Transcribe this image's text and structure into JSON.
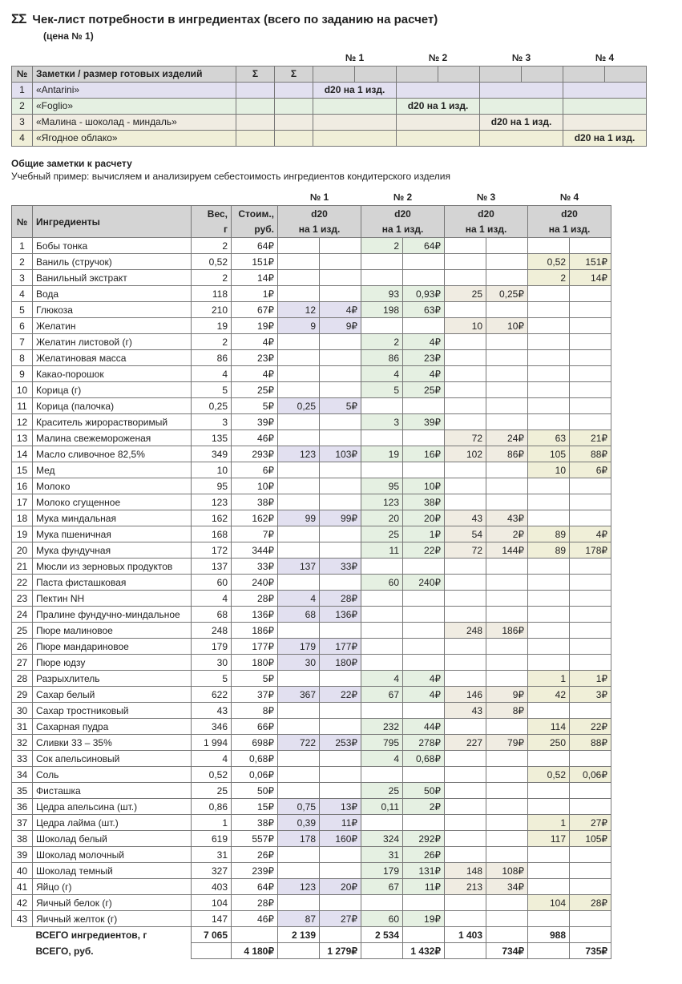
{
  "title_prefix": "ΣΣ",
  "title": "Чек-лист потребности в ингредиентах (всего по заданию на расчет)",
  "price_subtitle": "(цена № 1)",
  "recipe_header_num": "№",
  "recipe_header_name": "Заметки / размер готовых изделий",
  "recipe_header_sigma": "Σ",
  "recipe_group_labels": [
    "№ 1",
    "№ 2",
    "№ 3",
    "№ 4"
  ],
  "recipes": [
    {
      "n": "1",
      "name": "«Antarini»",
      "note": "d20 на 1 изд.",
      "row_cls": "row-purple"
    },
    {
      "n": "2",
      "name": "«Foglio»",
      "note": "d20 на 1 изд.",
      "row_cls": "row-green"
    },
    {
      "n": "3",
      "name": "«Малина - шоколад - миндаль»",
      "note": "d20 на 1 изд.",
      "row_cls": "row-tan"
    },
    {
      "n": "4",
      "name": "«Ягодное облако»",
      "note": "d20 на 1 изд.",
      "row_cls": "row-yellow"
    }
  ],
  "notes_heading": "Общие заметки к расчету",
  "notes_text": "Учебный пример: вычисляем и анализируем себестоимость ингредиентов кондитерского изделия",
  "ing_header_num": "№",
  "ing_header_name": "Ингредиенты",
  "ing_header_weight_1": "Вес,",
  "ing_header_weight_2": "г",
  "ing_header_cost_1": "Стоим.,",
  "ing_header_cost_2": "руб.",
  "ing_group_top": [
    "№ 1",
    "№ 2",
    "№ 3",
    "№ 4"
  ],
  "ing_group_mid": "d20",
  "ing_group_bot": "на 1 изд.",
  "cell_classes": [
    "cell-purple",
    "cell-green",
    "cell-tan",
    "cell-yellow"
  ],
  "ingredients": [
    {
      "n": "1",
      "name": "Бобы тонка",
      "w": "2",
      "c": "64₽",
      "g": [
        [
          "",
          ""
        ],
        [
          "2",
          "64₽"
        ],
        [
          "",
          ""
        ],
        [
          "",
          ""
        ]
      ]
    },
    {
      "n": "2",
      "name": "Ваниль (стручок)",
      "w": "0,52",
      "c": "151₽",
      "g": [
        [
          "",
          ""
        ],
        [
          "",
          ""
        ],
        [
          "",
          ""
        ],
        [
          "0,52",
          "151₽"
        ]
      ]
    },
    {
      "n": "3",
      "name": "Ванильный экстракт",
      "w": "2",
      "c": "14₽",
      "g": [
        [
          "",
          ""
        ],
        [
          "",
          ""
        ],
        [
          "",
          ""
        ],
        [
          "2",
          "14₽"
        ]
      ]
    },
    {
      "n": "4",
      "name": "Вода",
      "w": "118",
      "c": "1₽",
      "g": [
        [
          "",
          ""
        ],
        [
          "93",
          "0,93₽"
        ],
        [
          "25",
          "0,25₽"
        ],
        [
          "",
          ""
        ]
      ]
    },
    {
      "n": "5",
      "name": "Глюкоза",
      "w": "210",
      "c": "67₽",
      "g": [
        [
          "12",
          "4₽"
        ],
        [
          "198",
          "63₽"
        ],
        [
          "",
          ""
        ],
        [
          "",
          ""
        ]
      ]
    },
    {
      "n": "6",
      "name": "Желатин",
      "w": "19",
      "c": "19₽",
      "g": [
        [
          "9",
          "9₽"
        ],
        [
          "",
          ""
        ],
        [
          "10",
          "10₽"
        ],
        [
          "",
          ""
        ]
      ]
    },
    {
      "n": "7",
      "name": "Желатин листовой (г)",
      "w": "2",
      "c": "4₽",
      "g": [
        [
          "",
          ""
        ],
        [
          "2",
          "4₽"
        ],
        [
          "",
          ""
        ],
        [
          "",
          ""
        ]
      ]
    },
    {
      "n": "8",
      "name": "Желатиновая масса",
      "w": "86",
      "c": "23₽",
      "g": [
        [
          "",
          ""
        ],
        [
          "86",
          "23₽"
        ],
        [
          "",
          ""
        ],
        [
          "",
          ""
        ]
      ]
    },
    {
      "n": "9",
      "name": "Какао-порошок",
      "w": "4",
      "c": "4₽",
      "g": [
        [
          "",
          ""
        ],
        [
          "4",
          "4₽"
        ],
        [
          "",
          ""
        ],
        [
          "",
          ""
        ]
      ]
    },
    {
      "n": "10",
      "name": "Корица (г)",
      "w": "5",
      "c": "25₽",
      "g": [
        [
          "",
          ""
        ],
        [
          "5",
          "25₽"
        ],
        [
          "",
          ""
        ],
        [
          "",
          ""
        ]
      ]
    },
    {
      "n": "11",
      "name": "Корица (палочка)",
      "w": "0,25",
      "c": "5₽",
      "g": [
        [
          "0,25",
          "5₽"
        ],
        [
          "",
          ""
        ],
        [
          "",
          ""
        ],
        [
          "",
          ""
        ]
      ]
    },
    {
      "n": "12",
      "name": "Краситель жирорастворимый",
      "w": "3",
      "c": "39₽",
      "g": [
        [
          "",
          ""
        ],
        [
          "3",
          "39₽"
        ],
        [
          "",
          ""
        ],
        [
          "",
          ""
        ]
      ]
    },
    {
      "n": "13",
      "name": "Малина свежемороженая",
      "w": "135",
      "c": "46₽",
      "g": [
        [
          "",
          ""
        ],
        [
          "",
          ""
        ],
        [
          "72",
          "24₽"
        ],
        [
          "63",
          "21₽"
        ]
      ]
    },
    {
      "n": "14",
      "name": "Масло сливочное 82,5%",
      "w": "349",
      "c": "293₽",
      "g": [
        [
          "123",
          "103₽"
        ],
        [
          "19",
          "16₽"
        ],
        [
          "102",
          "86₽"
        ],
        [
          "105",
          "88₽"
        ]
      ]
    },
    {
      "n": "15",
      "name": "Мед",
      "w": "10",
      "c": "6₽",
      "g": [
        [
          "",
          ""
        ],
        [
          "",
          ""
        ],
        [
          "",
          ""
        ],
        [
          "10",
          "6₽"
        ]
      ]
    },
    {
      "n": "16",
      "name": "Молоко",
      "w": "95",
      "c": "10₽",
      "g": [
        [
          "",
          ""
        ],
        [
          "95",
          "10₽"
        ],
        [
          "",
          ""
        ],
        [
          "",
          ""
        ]
      ]
    },
    {
      "n": "17",
      "name": "Молоко сгущенное",
      "w": "123",
      "c": "38₽",
      "g": [
        [
          "",
          ""
        ],
        [
          "123",
          "38₽"
        ],
        [
          "",
          ""
        ],
        [
          "",
          ""
        ]
      ]
    },
    {
      "n": "18",
      "name": "Мука миндальная",
      "w": "162",
      "c": "162₽",
      "g": [
        [
          "99",
          "99₽"
        ],
        [
          "20",
          "20₽"
        ],
        [
          "43",
          "43₽"
        ],
        [
          "",
          ""
        ]
      ]
    },
    {
      "n": "19",
      "name": "Мука пшеничная",
      "w": "168",
      "c": "7₽",
      "g": [
        [
          "",
          ""
        ],
        [
          "25",
          "1₽"
        ],
        [
          "54",
          "2₽"
        ],
        [
          "89",
          "4₽"
        ]
      ]
    },
    {
      "n": "20",
      "name": "Мука фундучная",
      "w": "172",
      "c": "344₽",
      "g": [
        [
          "",
          ""
        ],
        [
          "11",
          "22₽"
        ],
        [
          "72",
          "144₽"
        ],
        [
          "89",
          "178₽"
        ]
      ]
    },
    {
      "n": "21",
      "name": "Мюсли из зерновых продуктов",
      "w": "137",
      "c": "33₽",
      "g": [
        [
          "137",
          "33₽"
        ],
        [
          "",
          ""
        ],
        [
          "",
          ""
        ],
        [
          "",
          ""
        ]
      ]
    },
    {
      "n": "22",
      "name": "Паста фисташковая",
      "w": "60",
      "c": "240₽",
      "g": [
        [
          "",
          ""
        ],
        [
          "60",
          "240₽"
        ],
        [
          "",
          ""
        ],
        [
          "",
          ""
        ]
      ]
    },
    {
      "n": "23",
      "name": "Пектин NH",
      "w": "4",
      "c": "28₽",
      "g": [
        [
          "4",
          "28₽"
        ],
        [
          "",
          ""
        ],
        [
          "",
          ""
        ],
        [
          "",
          ""
        ]
      ]
    },
    {
      "n": "24",
      "name": "Пралине фундучно-миндальное",
      "w": "68",
      "c": "136₽",
      "g": [
        [
          "68",
          "136₽"
        ],
        [
          "",
          ""
        ],
        [
          "",
          ""
        ],
        [
          "",
          ""
        ]
      ]
    },
    {
      "n": "25",
      "name": "Пюре малиновое",
      "w": "248",
      "c": "186₽",
      "g": [
        [
          "",
          ""
        ],
        [
          "",
          ""
        ],
        [
          "248",
          "186₽"
        ],
        [
          "",
          ""
        ]
      ]
    },
    {
      "n": "26",
      "name": "Пюре мандариновое",
      "w": "179",
      "c": "177₽",
      "g": [
        [
          "179",
          "177₽"
        ],
        [
          "",
          ""
        ],
        [
          "",
          ""
        ],
        [
          "",
          ""
        ]
      ]
    },
    {
      "n": "27",
      "name": "Пюре юдзу",
      "w": "30",
      "c": "180₽",
      "g": [
        [
          "30",
          "180₽"
        ],
        [
          "",
          ""
        ],
        [
          "",
          ""
        ],
        [
          "",
          ""
        ]
      ]
    },
    {
      "n": "28",
      "name": "Разрыхлитель",
      "w": "5",
      "c": "5₽",
      "g": [
        [
          "",
          ""
        ],
        [
          "4",
          "4₽"
        ],
        [
          "",
          ""
        ],
        [
          "1",
          "1₽"
        ]
      ]
    },
    {
      "n": "29",
      "name": "Сахар белый",
      "w": "622",
      "c": "37₽",
      "g": [
        [
          "367",
          "22₽"
        ],
        [
          "67",
          "4₽"
        ],
        [
          "146",
          "9₽"
        ],
        [
          "42",
          "3₽"
        ]
      ]
    },
    {
      "n": "30",
      "name": "Сахар тростниковый",
      "w": "43",
      "c": "8₽",
      "g": [
        [
          "",
          ""
        ],
        [
          "",
          ""
        ],
        [
          "43",
          "8₽"
        ],
        [
          "",
          ""
        ]
      ]
    },
    {
      "n": "31",
      "name": "Сахарная пудра",
      "w": "346",
      "c": "66₽",
      "g": [
        [
          "",
          ""
        ],
        [
          "232",
          "44₽"
        ],
        [
          "",
          ""
        ],
        [
          "114",
          "22₽"
        ]
      ]
    },
    {
      "n": "32",
      "name": "Сливки 33 – 35%",
      "w": "1 994",
      "c": "698₽",
      "g": [
        [
          "722",
          "253₽"
        ],
        [
          "795",
          "278₽"
        ],
        [
          "227",
          "79₽"
        ],
        [
          "250",
          "88₽"
        ]
      ]
    },
    {
      "n": "33",
      "name": "Сок апельсиновый",
      "w": "4",
      "c": "0,68₽",
      "g": [
        [
          "",
          ""
        ],
        [
          "4",
          "0,68₽"
        ],
        [
          "",
          ""
        ],
        [
          "",
          ""
        ]
      ]
    },
    {
      "n": "34",
      "name": "Соль",
      "w": "0,52",
      "c": "0,06₽",
      "g": [
        [
          "",
          ""
        ],
        [
          "",
          ""
        ],
        [
          "",
          ""
        ],
        [
          "0,52",
          "0,06₽"
        ]
      ]
    },
    {
      "n": "35",
      "name": "Фисташка",
      "w": "25",
      "c": "50₽",
      "g": [
        [
          "",
          ""
        ],
        [
          "25",
          "50₽"
        ],
        [
          "",
          ""
        ],
        [
          "",
          ""
        ]
      ]
    },
    {
      "n": "36",
      "name": "Цедра апельсина (шт.)",
      "w": "0,86",
      "c": "15₽",
      "g": [
        [
          "0,75",
          "13₽"
        ],
        [
          "0,11",
          "2₽"
        ],
        [
          "",
          ""
        ],
        [
          "",
          ""
        ]
      ]
    },
    {
      "n": "37",
      "name": "Цедра лайма (шт.)",
      "w": "1",
      "c": "38₽",
      "g": [
        [
          "0,39",
          "11₽"
        ],
        [
          "",
          ""
        ],
        [
          "",
          ""
        ],
        [
          "1",
          "27₽"
        ]
      ]
    },
    {
      "n": "38",
      "name": "Шоколад белый",
      "w": "619",
      "c": "557₽",
      "g": [
        [
          "178",
          "160₽"
        ],
        [
          "324",
          "292₽"
        ],
        [
          "",
          ""
        ],
        [
          "117",
          "105₽"
        ]
      ]
    },
    {
      "n": "39",
      "name": "Шоколад молочный",
      "w": "31",
      "c": "26₽",
      "g": [
        [
          "",
          ""
        ],
        [
          "31",
          "26₽"
        ],
        [
          "",
          ""
        ],
        [
          "",
          ""
        ]
      ]
    },
    {
      "n": "40",
      "name": "Шоколад темный",
      "w": "327",
      "c": "239₽",
      "g": [
        [
          "",
          ""
        ],
        [
          "179",
          "131₽"
        ],
        [
          "148",
          "108₽"
        ],
        [
          "",
          ""
        ]
      ]
    },
    {
      "n": "41",
      "name": "Яйцо (г)",
      "w": "403",
      "c": "64₽",
      "g": [
        [
          "123",
          "20₽"
        ],
        [
          "67",
          "11₽"
        ],
        [
          "213",
          "34₽"
        ],
        [
          "",
          ""
        ]
      ]
    },
    {
      "n": "42",
      "name": "Яичный белок (г)",
      "w": "104",
      "c": "28₽",
      "g": [
        [
          "",
          ""
        ],
        [
          "",
          ""
        ],
        [
          "",
          ""
        ],
        [
          "104",
          "28₽"
        ]
      ]
    },
    {
      "n": "43",
      "name": "Яичный желток (г)",
      "w": "147",
      "c": "46₽",
      "g": [
        [
          "87",
          "27₽"
        ],
        [
          "60",
          "19₽"
        ],
        [
          "",
          ""
        ],
        [
          "",
          ""
        ]
      ]
    }
  ],
  "totals_weight_label": "ВСЕГО ингредиентов, г",
  "totals_weight_sum": "7 065",
  "totals_weight_groups": [
    "2 139",
    "2 534",
    "1 403",
    "988"
  ],
  "totals_cost_label": "ВСЕГО, руб.",
  "totals_cost_sum": "4 180₽",
  "totals_cost_groups": [
    "1 279₽",
    "1 432₽",
    "734₽",
    "735₽"
  ]
}
